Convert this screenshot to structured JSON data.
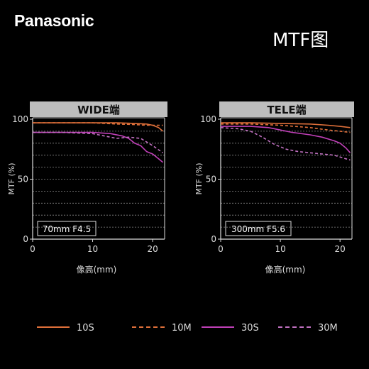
{
  "brand": "Panasonic",
  "title": "MTF图",
  "colors": {
    "s10": "#e0703a",
    "m10": "#e0703a",
    "s30": "#c040b8",
    "m30": "#c070c0"
  },
  "legend": [
    "10S",
    "10M",
    "30S",
    "30M"
  ],
  "chart_data": [
    {
      "type": "line",
      "header": "WIDE端",
      "note": "70mm F4.5",
      "xlabel": "像高(mm)",
      "ylabel": "MTF (%)",
      "xlim": [
        0,
        22
      ],
      "ylim": [
        0,
        100
      ],
      "xticks": [
        "0",
        "10",
        "20"
      ],
      "yticks": [
        "0",
        "50",
        "100"
      ],
      "grid": true,
      "series": [
        {
          "name": "10S",
          "style": "solid",
          "color": "s10",
          "x": [
            0,
            5,
            10,
            14,
            17,
            19,
            20,
            21,
            21.7
          ],
          "y": [
            97,
            97,
            97,
            97,
            96.5,
            96,
            95,
            93,
            90
          ]
        },
        {
          "name": "10M",
          "style": "dashed",
          "color": "m10",
          "x": [
            0,
            5,
            10,
            14,
            17,
            19,
            20,
            21,
            21.7
          ],
          "y": [
            97,
            97,
            97,
            96,
            95.5,
            95,
            95,
            95,
            95
          ]
        },
        {
          "name": "30S",
          "style": "solid",
          "color": "s30",
          "x": [
            0,
            5,
            10,
            13,
            15,
            16,
            17,
            18,
            19,
            20,
            21,
            21.7
          ],
          "y": [
            89,
            89,
            89,
            88,
            86,
            84,
            80,
            78,
            73,
            71,
            67,
            64
          ]
        },
        {
          "name": "30M",
          "style": "dashed",
          "color": "m30",
          "x": [
            0,
            5,
            10,
            12,
            14,
            16,
            18,
            20,
            21.7
          ],
          "y": [
            89,
            89,
            88,
            86,
            84,
            85,
            84,
            78,
            72
          ]
        }
      ]
    },
    {
      "type": "line",
      "header": "TELE端",
      "note": "300mm F5.6",
      "xlabel": "像高(mm)",
      "ylabel": "MTF (%)",
      "xlim": [
        0,
        22
      ],
      "ylim": [
        0,
        100
      ],
      "xticks": [
        "0",
        "10",
        "20"
      ],
      "yticks": [
        "0",
        "50",
        "100"
      ],
      "grid": true,
      "series": [
        {
          "name": "10S",
          "style": "solid",
          "color": "s10",
          "x": [
            0,
            5,
            10,
            15,
            18,
            20,
            21.7
          ],
          "y": [
            97,
            97,
            96.5,
            96,
            95,
            94,
            93
          ]
        },
        {
          "name": "10M",
          "style": "dashed",
          "color": "m10",
          "x": [
            0,
            5,
            10,
            15,
            18,
            20,
            21.7
          ],
          "y": [
            96,
            96,
            95,
            93,
            91,
            90,
            89
          ]
        },
        {
          "name": "30S",
          "style": "solid",
          "color": "s30",
          "x": [
            0,
            5,
            8,
            10,
            12,
            15,
            17,
            19,
            20,
            21,
            21.7
          ],
          "y": [
            94,
            94,
            93,
            91,
            89,
            87,
            85,
            82,
            80,
            76,
            72
          ]
        },
        {
          "name": "30M",
          "style": "dashed",
          "color": "m30",
          "x": [
            0,
            3,
            5,
            7,
            9,
            11,
            13,
            15,
            17,
            19,
            21,
            21.7
          ],
          "y": [
            93,
            92,
            90,
            85,
            79,
            75,
            73,
            72,
            71,
            70,
            67,
            66
          ]
        }
      ]
    }
  ]
}
